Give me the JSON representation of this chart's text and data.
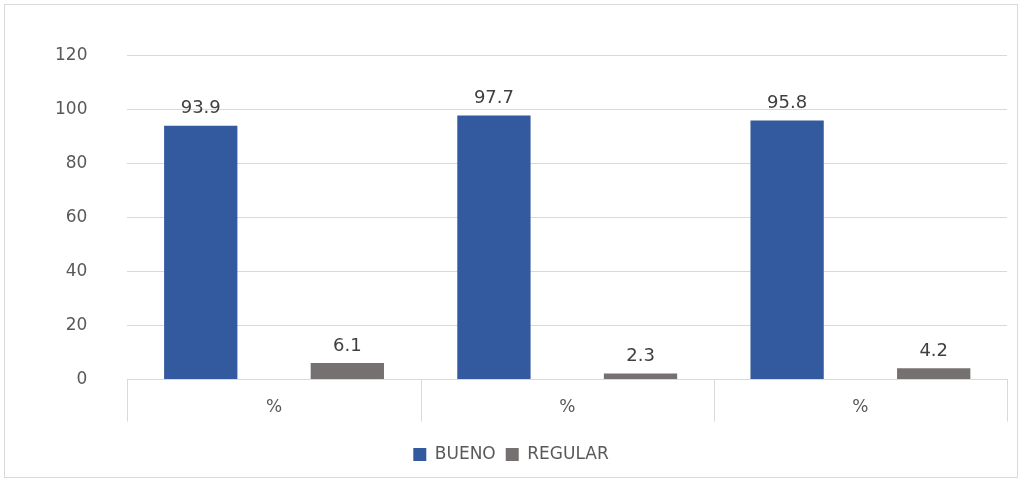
{
  "chart_data": {
    "type": "bar",
    "categories": [
      "%",
      "%",
      "%"
    ],
    "series": [
      {
        "name": "BUENO",
        "color": "#335a9e",
        "values": [
          93.9,
          97.7,
          95.8
        ]
      },
      {
        "name": "REGULAR",
        "color": "#767171",
        "values": [
          6.1,
          2.3,
          4.2
        ]
      }
    ],
    "ylim": [
      0,
      120
    ],
    "yticks": [
      0,
      20,
      40,
      60,
      80,
      100,
      120
    ],
    "grid": "y",
    "legend": "bottom",
    "data_labels": true
  }
}
